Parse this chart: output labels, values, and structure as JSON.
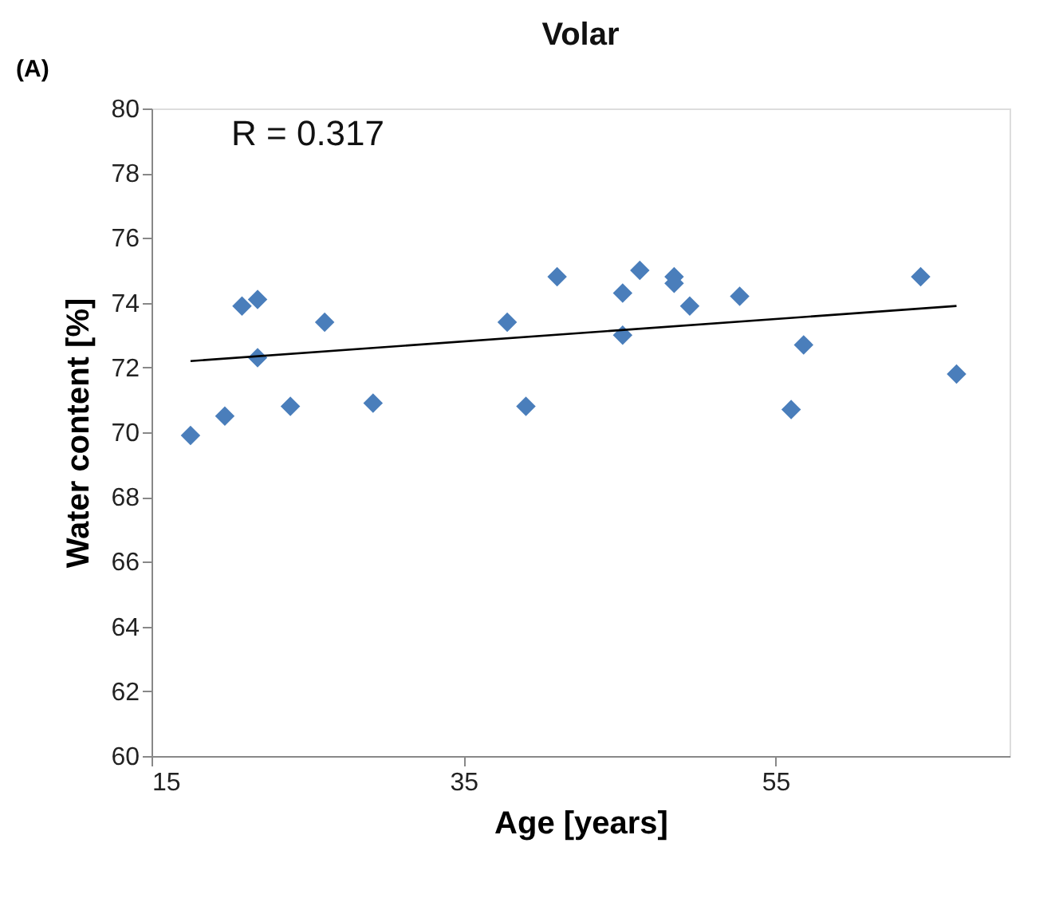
{
  "chart_data": {
    "type": "scatter",
    "title": "Volar",
    "subtitle": "(A)",
    "xlabel": "Age [years]",
    "ylabel": "Water content [%]",
    "xlim": [
      15,
      70
    ],
    "xticks": [
      15,
      35,
      55
    ],
    "ylim": [
      60,
      80
    ],
    "yticks": [
      60,
      62,
      64,
      66,
      68,
      70,
      72,
      74,
      76,
      78,
      80
    ],
    "grid": false,
    "marker": "diamond",
    "annotations": [
      "R = 0.317"
    ],
    "series": [
      {
        "color": "#4a7ebb",
        "x": [
          17.5,
          19.7,
          20.8,
          21.8,
          21.8,
          23.9,
          26.1,
          29.2,
          37.8,
          39.0,
          41.0,
          45.2,
          45.2,
          46.3,
          48.5,
          48.5,
          49.5,
          52.7,
          56.0,
          56.8,
          64.3,
          66.6
        ],
        "values": [
          69.9,
          70.5,
          73.9,
          74.1,
          72.3,
          70.8,
          73.4,
          70.9,
          73.4,
          70.8,
          74.8,
          74.3,
          73.0,
          75.0,
          74.8,
          74.6,
          73.9,
          74.2,
          70.7,
          72.7,
          74.8,
          71.8
        ]
      },
      {
        "type": "line",
        "color": "#000000",
        "line_style": "solid",
        "marker": "none",
        "x": [
          17.5,
          66.6
        ],
        "values": [
          72.2,
          73.9
        ]
      }
    ]
  }
}
